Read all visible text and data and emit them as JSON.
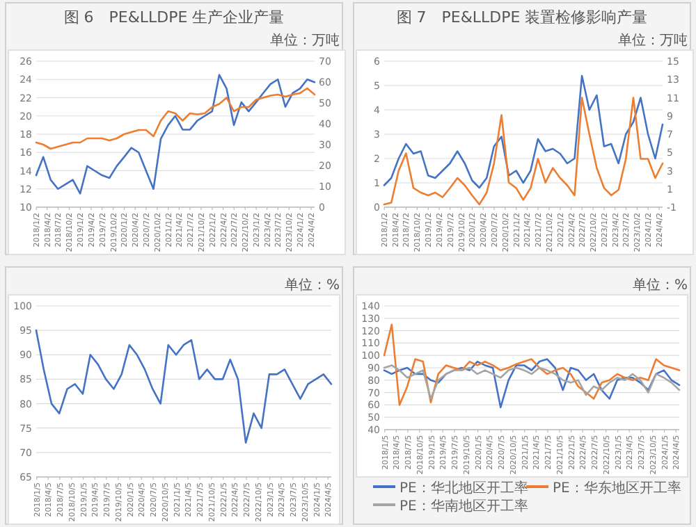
{
  "chart_data": [
    {
      "type": "line",
      "title": "图 6　PE&LLDPE 生产企业产量",
      "annotations": [
        "单位：万吨"
      ],
      "grid": "y",
      "x": [
        "2018-01",
        "2018-03",
        "2018-05",
        "2018-07",
        "2018-09",
        "2018-11",
        "2019-01",
        "2019-03",
        "2019-05",
        "2019-07",
        "2019-09",
        "2019-11",
        "2020-01",
        "2020-03",
        "2020-05",
        "2020-07",
        "2020-09",
        "2020-11",
        "2021-01",
        "2021-03",
        "2021-05",
        "2021-07",
        "2021-09",
        "2021-11",
        "2022-01",
        "2022-03",
        "2022-05",
        "2022-07",
        "2022-09",
        "2022-11",
        "2023-01",
        "2023-03",
        "2023-05",
        "2023-07",
        "2023-09",
        "2023-11",
        "2024-01",
        "2024-03",
        "2024-05"
      ],
      "xlim": [
        "2018-01-01",
        "2024-05-01"
      ],
      "xticks": [
        {
          "value": "2018-01-02",
          "label": "2018/1/2"
        },
        {
          "value": "2018-04-02",
          "label": "2018/4/2"
        },
        {
          "value": "2018-07-02",
          "label": "2018/7/2"
        },
        {
          "value": "2018-10-02",
          "label": "2018/10/2"
        },
        {
          "value": "2019-01-02",
          "label": "2019/1/2"
        },
        {
          "value": "2019-04-02",
          "label": "2019/4/2"
        },
        {
          "value": "2019-07-02",
          "label": "2019/7/2"
        },
        {
          "value": "2019-10-02",
          "label": "2019/10/2"
        },
        {
          "value": "2020-01-02",
          "label": "2020/1/2"
        },
        {
          "value": "2020-04-02",
          "label": "2020/4/2"
        },
        {
          "value": "2020-07-02",
          "label": "2020/7/2"
        },
        {
          "value": "2020-10-02",
          "label": "2020/10/2"
        },
        {
          "value": "2021-01-02",
          "label": "2021/1/2"
        },
        {
          "value": "2021-04-02",
          "label": "2021/4/2"
        },
        {
          "value": "2021-07-02",
          "label": "2021/7/2"
        },
        {
          "value": "2021-10-02",
          "label": "2021/10/2"
        },
        {
          "value": "2022-01-02",
          "label": "2022/1/2"
        },
        {
          "value": "2022-04-02",
          "label": "2022/4/2"
        },
        {
          "value": "2022-07-02",
          "label": "2022/7/2"
        },
        {
          "value": "2022-10-02",
          "label": "2022/10/2"
        },
        {
          "value": "2023-01-02",
          "label": "2023/1/2"
        },
        {
          "value": "2023-04-02",
          "label": "2023/4/2"
        },
        {
          "value": "2023-07-02",
          "label": "2023/7/2"
        },
        {
          "value": "2023-10-02",
          "label": "2023/10/2"
        },
        {
          "value": "2024-01-02",
          "label": "2024/1/2"
        },
        {
          "value": "2024-04-02",
          "label": "2024/4/2"
        }
      ],
      "ylim": [
        10,
        26
      ],
      "yticks": [
        10,
        12,
        14,
        16,
        18,
        20,
        22,
        24,
        26
      ],
      "y2lim": [
        0,
        70
      ],
      "y2ticks": [
        0,
        10,
        20,
        30,
        40,
        50,
        60,
        70
      ],
      "series": [
        {
          "color": "#4472c4",
          "values": [
            13.5,
            15.5,
            13,
            12,
            12.5,
            13,
            11.5,
            14.5,
            14,
            13.5,
            13.2,
            14.5,
            15.5,
            16.5,
            16,
            14,
            12,
            17.5,
            19,
            20,
            18.5,
            18.5,
            19.5,
            20,
            20.5,
            24.5,
            23,
            19,
            21.5,
            20.5,
            21.5,
            22.5,
            23.5,
            24,
            21,
            22.5,
            23,
            24,
            23.7
          ]
        },
        {
          "color": "#ed7d31",
          "axis": "y2",
          "values": [
            31,
            30,
            28,
            29,
            30,
            31,
            31,
            33,
            33,
            33,
            32,
            33,
            35,
            36,
            37,
            37,
            34,
            41.5,
            46,
            45,
            41.5,
            45,
            44.5,
            45,
            48,
            49.5,
            52.5,
            46,
            48,
            48,
            51.5,
            52.5,
            53.5,
            54,
            53,
            54,
            54.7,
            57,
            54
          ]
        }
      ]
    },
    {
      "type": "line",
      "title": "图 7　PE&LLDPE 装置检修影响产量",
      "annotations": [
        "单位：万吨"
      ],
      "grid": "y",
      "x": [
        "2018-01",
        "2018-03",
        "2018-05",
        "2018-07",
        "2018-09",
        "2018-11",
        "2019-01",
        "2019-03",
        "2019-05",
        "2019-07",
        "2019-09",
        "2019-11",
        "2020-01",
        "2020-03",
        "2020-05",
        "2020-07",
        "2020-09",
        "2020-11",
        "2021-01",
        "2021-03",
        "2021-05",
        "2021-07",
        "2021-09",
        "2021-11",
        "2022-01",
        "2022-03",
        "2022-05",
        "2022-07",
        "2022-09",
        "2022-11",
        "2023-01",
        "2023-03",
        "2023-05",
        "2023-07",
        "2023-09",
        "2023-11",
        "2024-01",
        "2024-03",
        "2024-05"
      ],
      "xlim": [
        "2018-01-01",
        "2024-05-01"
      ],
      "xticks": [
        {
          "value": "2018-01-02",
          "label": "2018/1/2"
        },
        {
          "value": "2018-04-02",
          "label": "2018/4/2"
        },
        {
          "value": "2018-07-02",
          "label": "2018/7/2"
        },
        {
          "value": "2018-10-02",
          "label": "2018/10/2"
        },
        {
          "value": "2019-01-02",
          "label": "2019/1/2"
        },
        {
          "value": "2019-04-02",
          "label": "2019/4/2"
        },
        {
          "value": "2019-07-02",
          "label": "2019/7/2"
        },
        {
          "value": "2019-10-02",
          "label": "2019/10/2"
        },
        {
          "value": "2020-01-02",
          "label": "2020/1/2"
        },
        {
          "value": "2020-04-02",
          "label": "2020/4/2"
        },
        {
          "value": "2020-07-02",
          "label": "2020/7/2"
        },
        {
          "value": "2020-10-02",
          "label": "2020/10/2"
        },
        {
          "value": "2021-01-02",
          "label": "2021/1/2"
        },
        {
          "value": "2021-04-02",
          "label": "2021/4/2"
        },
        {
          "value": "2021-07-02",
          "label": "2021/7/2"
        },
        {
          "value": "2021-10-02",
          "label": "2021/10/2"
        },
        {
          "value": "2022-01-02",
          "label": "2022/1/2"
        },
        {
          "value": "2022-04-02",
          "label": "2022/4/2"
        },
        {
          "value": "2022-07-02",
          "label": "2022/7/2"
        },
        {
          "value": "2022-10-02",
          "label": "2022/10/2"
        },
        {
          "value": "2023-01-02",
          "label": "2023/1/2"
        },
        {
          "value": "2023-04-02",
          "label": "2023/4/2"
        },
        {
          "value": "2023-07-02",
          "label": "2023/7/2"
        },
        {
          "value": "2023-10-02",
          "label": "2023/10/2"
        },
        {
          "value": "2024-01-02",
          "label": "2024/1/2"
        },
        {
          "value": "2024-04-02",
          "label": "2024/4/2"
        }
      ],
      "ylim": [
        0,
        6
      ],
      "yticks": [
        0,
        1,
        2,
        3,
        4,
        5,
        6
      ],
      "y2lim": [
        -1,
        15
      ],
      "y2ticks": [
        -1,
        1,
        3,
        5,
        7,
        9,
        11,
        13,
        15
      ],
      "series": [
        {
          "color": "#4472c4",
          "values": [
            0.9,
            1.2,
            2.0,
            2.6,
            2.2,
            2.3,
            1.3,
            1.2,
            1.5,
            1.8,
            2.3,
            1.8,
            1.1,
            0.8,
            1.2,
            2.5,
            2.9,
            1.3,
            1.5,
            1.0,
            1.5,
            2.8,
            2.3,
            2.4,
            2.2,
            1.8,
            2.0,
            5.4,
            4.0,
            4.6,
            2.5,
            2.6,
            1.8,
            3.0,
            3.5,
            4.5,
            3.0,
            2.0,
            3.4
          ]
        },
        {
          "color": "#ed7d31",
          "axis": "y2",
          "values": [
            -0.7,
            -0.5,
            3,
            4.9,
            1.1,
            0.6,
            0.3,
            0.6,
            0.1,
            1.1,
            2.2,
            1.4,
            0.3,
            -0.7,
            0.6,
            3.8,
            9.1,
            1.7,
            1.1,
            -0.2,
            1.1,
            4.3,
            1.7,
            3.3,
            2.2,
            1.4,
            0.3,
            11,
            7,
            3.3,
            1.1,
            0.3,
            0.9,
            4.3,
            11,
            4.3,
            4.3,
            2.2,
            3.8
          ]
        }
      ]
    },
    {
      "type": "line",
      "annotations": [
        "单位：%"
      ],
      "grid": "y",
      "x": [
        "2018-01",
        "2018-03",
        "2018-05",
        "2018-07",
        "2018-09",
        "2018-11",
        "2019-01",
        "2019-03",
        "2019-05",
        "2019-07",
        "2019-09",
        "2019-11",
        "2020-01",
        "2020-03",
        "2020-05",
        "2020-07",
        "2020-09",
        "2020-11",
        "2021-01",
        "2021-03",
        "2021-05",
        "2021-07",
        "2021-09",
        "2021-11",
        "2022-01",
        "2022-03",
        "2022-05",
        "2022-07",
        "2022-09",
        "2022-11",
        "2023-01",
        "2023-03",
        "2023-05",
        "2023-07",
        "2023-09",
        "2023-11",
        "2024-01",
        "2024-03",
        "2024-05"
      ],
      "xlim": [
        "2018-01-01",
        "2024-05-01"
      ],
      "xticks": [
        {
          "value": "2018-01-05",
          "label": "2018/1/5"
        },
        {
          "value": "2018-04-05",
          "label": "2018/4/5"
        },
        {
          "value": "2018-07-05",
          "label": "2018/7/5"
        },
        {
          "value": "2018-10-05",
          "label": "2018/10/5"
        },
        {
          "value": "2019-01-05",
          "label": "2019/1/5"
        },
        {
          "value": "2019-04-05",
          "label": "2019/4/5"
        },
        {
          "value": "2019-07-05",
          "label": "2019/7/5"
        },
        {
          "value": "2019-10-05",
          "label": "2019/10/5"
        },
        {
          "value": "2020-01-05",
          "label": "2020/1/5"
        },
        {
          "value": "2020-04-05",
          "label": "2020/4/5"
        },
        {
          "value": "2020-07-05",
          "label": "2020/7/5"
        },
        {
          "value": "2020-10-05",
          "label": "2020/10/5"
        },
        {
          "value": "2021-01-05",
          "label": "2021/1/5"
        },
        {
          "value": "2021-04-05",
          "label": "2021/4/5"
        },
        {
          "value": "2021-07-05",
          "label": "2021/7/5"
        },
        {
          "value": "2021-10-05",
          "label": "2021/10/5"
        },
        {
          "value": "2022-01-05",
          "label": "2022/1/5"
        },
        {
          "value": "2022-04-05",
          "label": "2022/4/5"
        },
        {
          "value": "2022-07-05",
          "label": "2022/7/5"
        },
        {
          "value": "2022-10-05",
          "label": "2022/10/5"
        },
        {
          "value": "2023-01-05",
          "label": "2023/1/5"
        },
        {
          "value": "2023-04-05",
          "label": "2023/4/5"
        },
        {
          "value": "2023-07-05",
          "label": "2023/7/5"
        },
        {
          "value": "2023-10-05",
          "label": "2023/10/5"
        },
        {
          "value": "2024-01-05",
          "label": "2024/1/5"
        },
        {
          "value": "2024-04-05",
          "label": "2024/4/5"
        }
      ],
      "ylim": [
        65,
        100
      ],
      "yticks": [
        65,
        70,
        75,
        80,
        85,
        90,
        95,
        100
      ],
      "series": [
        {
          "color": "#4472c4",
          "values": [
            95,
            87,
            80,
            78,
            83,
            84,
            82,
            90,
            88,
            85,
            83,
            86,
            92,
            90,
            87,
            83,
            80,
            92,
            90,
            92,
            93,
            85,
            87,
            85,
            85,
            89,
            85,
            72,
            78,
            75,
            86,
            86,
            87,
            84,
            81,
            84,
            85,
            86,
            84
          ]
        }
      ]
    },
    {
      "type": "line",
      "annotations": [
        "单位：%"
      ],
      "grid": "y",
      "legend": "bottom",
      "x": [
        "2018-01",
        "2018-03",
        "2018-05",
        "2018-07",
        "2018-09",
        "2018-11",
        "2019-01",
        "2019-03",
        "2019-05",
        "2019-07",
        "2019-09",
        "2019-11",
        "2020-01",
        "2020-03",
        "2020-05",
        "2020-07",
        "2020-09",
        "2020-11",
        "2021-01",
        "2021-03",
        "2021-05",
        "2021-07",
        "2021-09",
        "2021-11",
        "2022-01",
        "2022-03",
        "2022-05",
        "2022-07",
        "2022-09",
        "2022-11",
        "2023-01",
        "2023-03",
        "2023-05",
        "2023-07",
        "2023-09",
        "2023-11",
        "2024-01",
        "2024-03",
        "2024-05"
      ],
      "xlim": [
        "2018-01-01",
        "2024-05-01"
      ],
      "xticks": [
        {
          "value": "2018-01-05",
          "label": "2018/1/5"
        },
        {
          "value": "2018-04-05",
          "label": "2018/4/5"
        },
        {
          "value": "2018-07-05",
          "label": "2018/7/5"
        },
        {
          "value": "2018-10-05",
          "label": "2018/10/5"
        },
        {
          "value": "2019-01-05",
          "label": "2019/1/5"
        },
        {
          "value": "2019-04-05",
          "label": "2019/4/5"
        },
        {
          "value": "2019-07-05",
          "label": "2019/7/5"
        },
        {
          "value": "2019-10-05",
          "label": "2019/10/5"
        },
        {
          "value": "2020-01-05",
          "label": "2020/1/5"
        },
        {
          "value": "2020-04-05",
          "label": "2020/4/5"
        },
        {
          "value": "2020-07-05",
          "label": "2020/7/5"
        },
        {
          "value": "2020-10-05",
          "label": "2020/10/5"
        },
        {
          "value": "2021-01-05",
          "label": "2021/1/5"
        },
        {
          "value": "2021-04-05",
          "label": "2021/4/5"
        },
        {
          "value": "2021-07-05",
          "label": "2021/7/5"
        },
        {
          "value": "2021-10-05",
          "label": "2021/10/5"
        },
        {
          "value": "2022-01-05",
          "label": "2022/1/5"
        },
        {
          "value": "2022-04-05",
          "label": "2022/4/5"
        },
        {
          "value": "2022-07-05",
          "label": "2022/7/5"
        },
        {
          "value": "2022-10-05",
          "label": "2022/10/5"
        },
        {
          "value": "2023-01-05",
          "label": "2023/1/5"
        },
        {
          "value": "2023-04-05",
          "label": "2023/4/5"
        },
        {
          "value": "2023-07-05",
          "label": "2023/7/5"
        },
        {
          "value": "2023-10-05",
          "label": "2023/10/5"
        },
        {
          "value": "2024-01-05",
          "label": "2024/1/5"
        },
        {
          "value": "2024-04-05",
          "label": "2024/4/5"
        }
      ],
      "ylim": [
        40,
        140
      ],
      "yticks": [
        40,
        50,
        60,
        70,
        80,
        90,
        100,
        110,
        120,
        130,
        140
      ],
      "series": [
        {
          "name": "PE：华北地区开工率",
          "color": "#4472c4",
          "values": [
            88,
            85,
            88,
            90,
            85,
            85,
            80,
            78,
            85,
            88,
            90,
            88,
            95,
            92,
            90,
            58,
            80,
            92,
            92,
            88,
            95,
            97,
            90,
            72,
            90,
            88,
            80,
            85,
            72,
            65,
            80,
            82,
            82,
            78,
            72,
            85,
            88,
            80,
            76
          ]
        },
        {
          "name": "PE：华东地区开工率",
          "color": "#ed7d31",
          "values": [
            100,
            125,
            60,
            75,
            97,
            95,
            62,
            85,
            92,
            90,
            88,
            95,
            92,
            95,
            92,
            88,
            90,
            93,
            95,
            97,
            90,
            85,
            88,
            90,
            85,
            75,
            70,
            65,
            78,
            80,
            85,
            82,
            80,
            82,
            80,
            97,
            92,
            90,
            88
          ]
        },
        {
          "name": "PE：华南地区开工率",
          "color": "#a5a5a5",
          "values": [
            90,
            92,
            88,
            82,
            85,
            88,
            65,
            80,
            85,
            88,
            88,
            90,
            85,
            88,
            85,
            82,
            88,
            90,
            88,
            85,
            90,
            88,
            85,
            80,
            78,
            80,
            68,
            75,
            72,
            78,
            82,
            80,
            85,
            80,
            70,
            85,
            82,
            78,
            72
          ]
        }
      ]
    }
  ]
}
